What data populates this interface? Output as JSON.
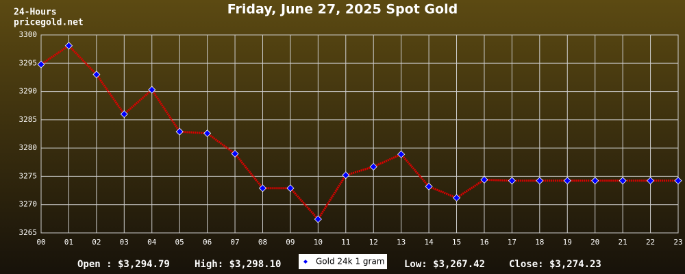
{
  "chart_data": {
    "type": "line",
    "title": "Friday, June 27, 2025 Spot Gold",
    "subtitle": "24-Hours",
    "source": "pricegold.net",
    "categories": [
      "00",
      "01",
      "02",
      "03",
      "04",
      "05",
      "06",
      "07",
      "08",
      "09",
      "10",
      "11",
      "12",
      "13",
      "14",
      "15",
      "16",
      "17",
      "18",
      "19",
      "20",
      "21",
      "22",
      "23"
    ],
    "series": [
      {
        "name": "Gold 24k 1 gram",
        "color": "#dd0000",
        "marker_color": "#0000ff",
        "values": [
          3294.79,
          3298.1,
          3293.0,
          3286.0,
          3290.3,
          3282.9,
          3282.6,
          3279.0,
          3272.9,
          3272.9,
          3267.42,
          3275.2,
          3276.7,
          3278.9,
          3273.2,
          3271.2,
          3274.4,
          3274.23,
          3274.23,
          3274.23,
          3274.23,
          3274.23,
          3274.23,
          3274.23
        ]
      }
    ],
    "ylim": [
      3265,
      3300
    ],
    "yticks": [
      3265,
      3270,
      3275,
      3280,
      3285,
      3290,
      3295,
      3300
    ],
    "grid": true,
    "stats": [
      "Open : $3,294.79",
      "High: $3,298.10",
      "Low: $3,267.42",
      "Close: $3,274.23"
    ]
  }
}
